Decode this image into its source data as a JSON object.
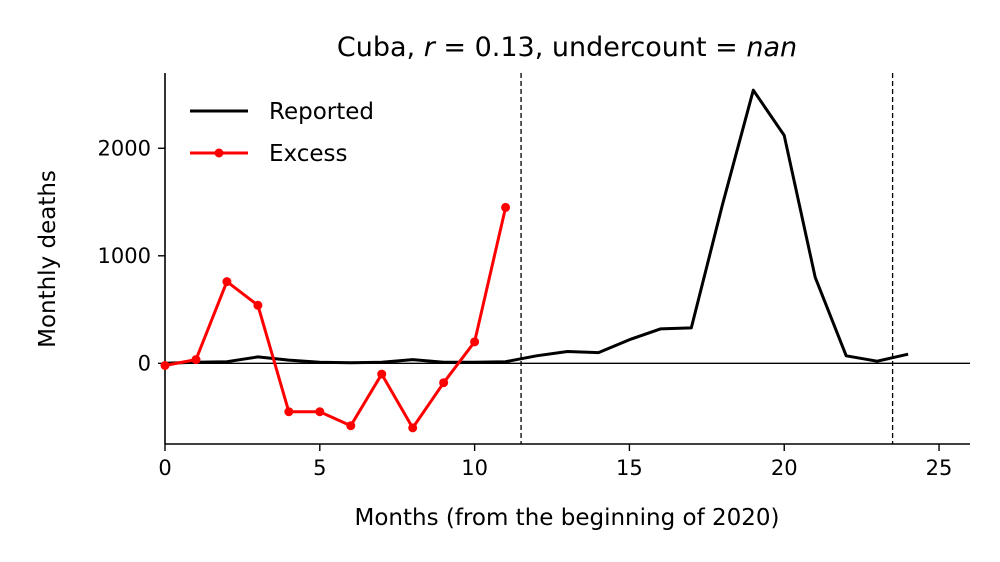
{
  "chart_data": {
    "type": "line",
    "title_parts": {
      "country": "Cuba, ",
      "r_symbol": "r",
      "r_value": " = 0.13, undercount = ",
      "undercount_value": "nan"
    },
    "xlabel": "Months (from the beginning of 2020)",
    "ylabel": "Monthly deaths",
    "xlim": [
      0,
      26
    ],
    "ylim": [
      -750,
      2700
    ],
    "xticks": [
      0,
      5,
      10,
      15,
      20,
      25
    ],
    "yticks": [
      0,
      1000,
      2000
    ],
    "zero_line": 0,
    "vertical_dashed_lines": [
      11.5,
      23.5
    ],
    "grid": false,
    "legend_position": "top-left",
    "series": [
      {
        "name": "Reported",
        "color": "#000000",
        "marker": "none",
        "x": [
          0,
          1,
          2,
          3,
          4,
          5,
          6,
          7,
          8,
          9,
          10,
          11,
          12,
          13,
          14,
          15,
          16,
          17,
          18,
          19,
          20,
          21,
          22,
          23,
          24
        ],
        "y": [
          0,
          10,
          15,
          60,
          30,
          10,
          5,
          10,
          35,
          10,
          10,
          15,
          70,
          110,
          100,
          220,
          320,
          330,
          1470,
          2540,
          2120,
          800,
          70,
          20,
          85
        ]
      },
      {
        "name": "Excess",
        "color": "#ff0000",
        "marker": "circle",
        "x": [
          0,
          1,
          2,
          3,
          4,
          5,
          6,
          7,
          8,
          9,
          10,
          11
        ],
        "y": [
          -20,
          35,
          760,
          540,
          -450,
          -450,
          -580,
          -100,
          -600,
          -180,
          200,
          1450
        ]
      }
    ]
  }
}
